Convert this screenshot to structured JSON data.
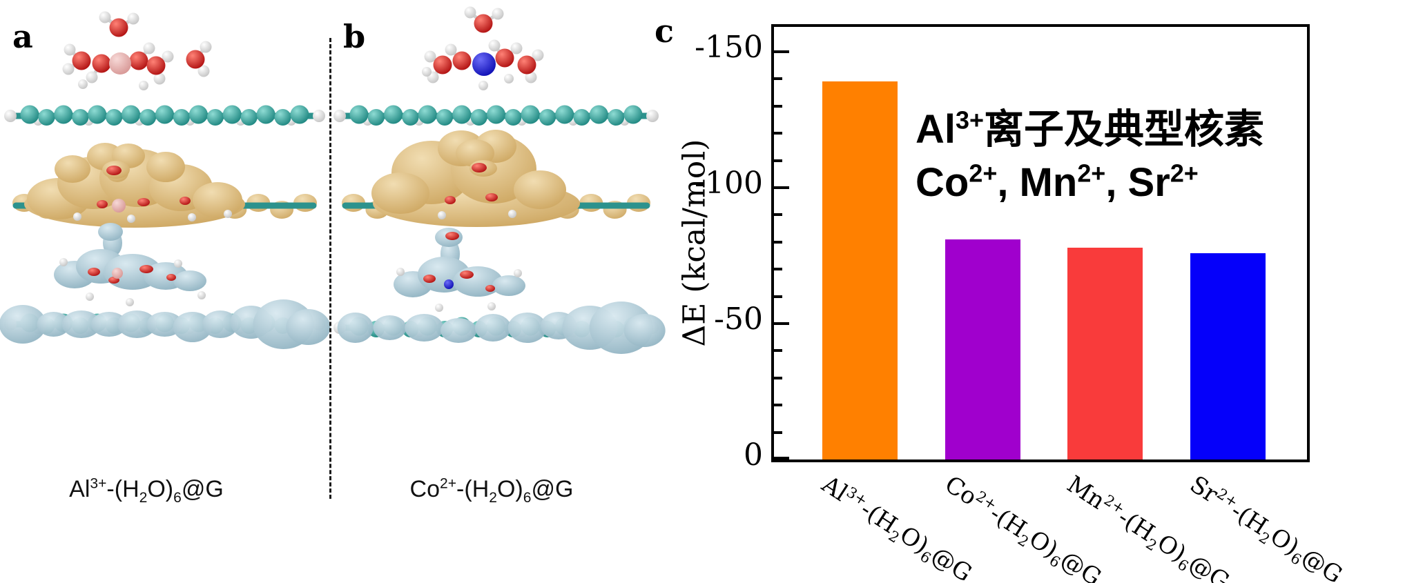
{
  "figure": {
    "panel_a": {
      "label": "a",
      "caption": "Al^{3+}-(H_{2}O)_{6}@G"
    },
    "panel_b": {
      "label": "b",
      "caption": "Co^{2+}-(H_{2}O)_{6}@G"
    },
    "panel_c": {
      "label": "c",
      "annotation_line1": "Al^{3+}离子及典型核素",
      "annotation_line2": "Co^{2+}, Mn^{2+}, Sr^{2+}"
    }
  },
  "chart_data": {
    "type": "bar",
    "title": "",
    "categories": [
      "Al^{3+}-(H_{2}O)_{6}@G",
      "Co^{2+}-(H_{2}O)_{6}@G",
      "Mn^{2+}-(H_{2}O)_{6}@G",
      "Sr^{2+}-(H_{2}O)_{6}@G"
    ],
    "values": [
      -139,
      -81,
      -78,
      -76
    ],
    "bar_colors": [
      "#FF8000",
      "#A000CD",
      "#F93B3B",
      "#0500FA"
    ],
    "xlabel": "",
    "ylabel": "ΔE (kcal/mol)",
    "ylim": [
      0,
      -160
    ],
    "yticks": [
      0,
      -50,
      -100,
      -150
    ],
    "minor_tick_step": 10,
    "grid": false,
    "legend_position": "none",
    "annotation": "Al^{3+}离子及典型核素 Co^{2+}, Mn^{2+}, Sr^{2+}"
  },
  "molecule_colors": {
    "carbon_teal": "#2C928D",
    "oxygen_red": "#C81A14",
    "hydrogen_white": "#E9E9E9",
    "aluminum_ion_pink": "#E2ACAA",
    "cobalt_ion_blue": "#1B1BC4",
    "charge_accumulation_tan": "#DFC18F",
    "charge_depletion_lightblue": "#ADC9D5"
  }
}
